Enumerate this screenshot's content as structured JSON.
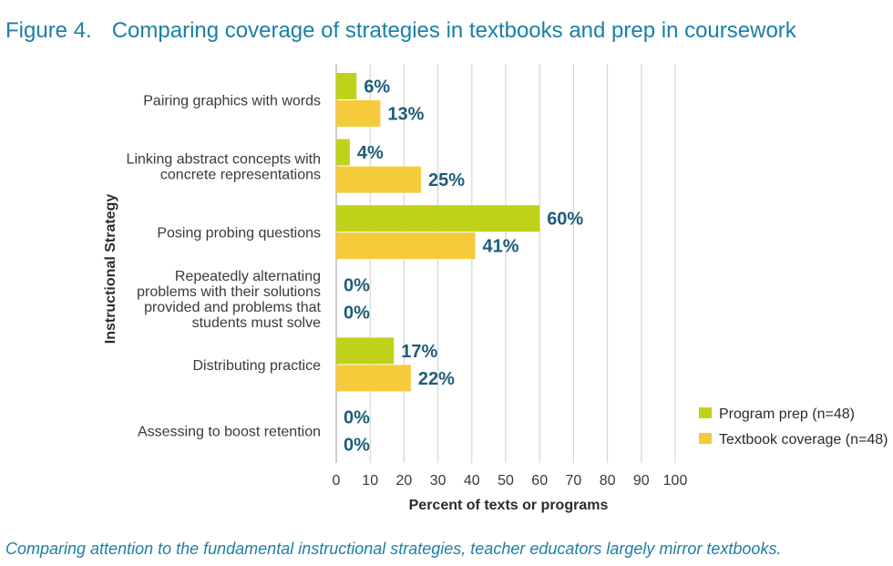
{
  "figure": {
    "number": "Figure 4.",
    "title": "Comparing coverage of strategies in textbooks and prep in coursework",
    "caption": "Comparing attention to the fundamental instructional strategies, teacher educators largely mirror textbooks."
  },
  "colors": {
    "program_prep": "#bfd219",
    "textbook_coverage": "#f5cb3b",
    "title_blue": "#1c7fa6",
    "data_label": "#1f5c7a",
    "gridline": "#cfcfcf"
  },
  "chart_data": {
    "type": "bar",
    "orientation": "horizontal",
    "categories": [
      [
        "Pairing graphics with words"
      ],
      [
        "Linking abstract concepts with",
        "concrete representations"
      ],
      [
        "Posing probing questions"
      ],
      [
        "Repeatedly alternating",
        "problems with their solutions",
        "provided and problems that",
        "students must solve"
      ],
      [
        "Distributing practice"
      ],
      [
        "Assessing to boost retention"
      ]
    ],
    "series": [
      {
        "name": "Program prep (n=48)",
        "values": [
          6,
          4,
          60,
          0,
          17,
          0
        ]
      },
      {
        "name": "Textbook coverage (n=48)",
        "values": [
          13,
          25,
          41,
          0,
          22,
          0
        ]
      }
    ],
    "value_suffix": "%",
    "xlabel": "Percent of texts or programs",
    "ylabel": "Instructional Strategy",
    "xlim": [
      0,
      100
    ],
    "xticks": [
      0,
      10,
      20,
      30,
      40,
      50,
      60,
      70,
      80,
      90,
      100
    ],
    "grid": "vertical",
    "legend_position": "bottom-right"
  }
}
